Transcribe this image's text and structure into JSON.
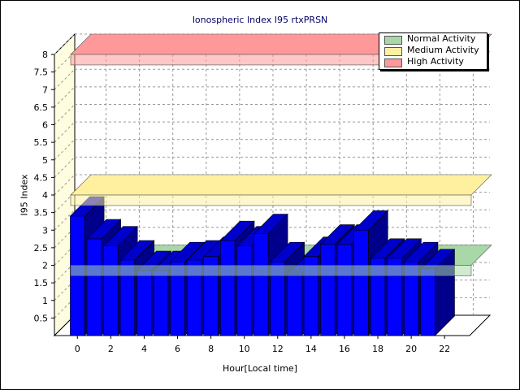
{
  "chart_data": {
    "type": "bar",
    "title": "Ionospheric Index I95 rtxPRSN",
    "xlabel": "Hour[Local time]",
    "ylabel": "I95 Index",
    "x": [
      0,
      1,
      2,
      3,
      4,
      5,
      6,
      7,
      8,
      9,
      10,
      11,
      12,
      13,
      14,
      15,
      16,
      17,
      18,
      19,
      20,
      21,
      22
    ],
    "values": [
      3.4,
      2.75,
      2.55,
      2.15,
      1.85,
      1.85,
      2.1,
      2.15,
      2.25,
      2.7,
      2.55,
      2.9,
      2.1,
      1.75,
      2.25,
      2.6,
      2.6,
      3.0,
      2.2,
      2.2,
      2.1,
      1.9,
      0
    ],
    "ylim": [
      0,
      8
    ],
    "yticks": [
      "0.5",
      "1",
      "1.5",
      "2",
      "2.5",
      "3",
      "3.5",
      "4",
      "4.5",
      "5",
      "5.5",
      "6",
      "6.5",
      "7",
      "7.5",
      "8"
    ],
    "xticks": [
      "0",
      "2",
      "4",
      "6",
      "8",
      "10",
      "12",
      "14",
      "16",
      "18",
      "20",
      "22"
    ],
    "thresholds": [
      {
        "name": "Normal Activity",
        "value": 2.0,
        "color": "#a8d8a8"
      },
      {
        "name": "Medium Activity",
        "value": 4.0,
        "color": "#fff0a0"
      },
      {
        "name": "High Activity",
        "value": 8.0,
        "color": "#ff9999"
      }
    ],
    "bar_color": "#0000ff",
    "grid": true,
    "legend_position": "top-right"
  }
}
